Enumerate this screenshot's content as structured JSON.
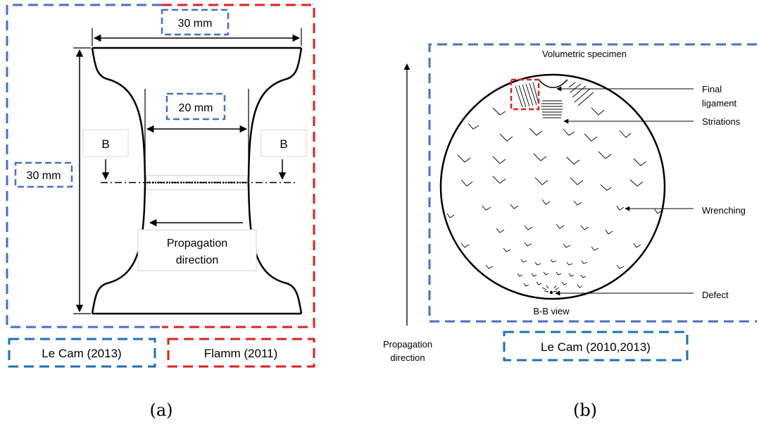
{
  "colors": {
    "blue": "#4472C4",
    "red": "#E02020",
    "dark_blue": "#1F6FB5",
    "black": "#000000"
  },
  "panel_a": {
    "caption": "(a)",
    "width_label": "30 mm",
    "height_label": "30 mm",
    "neck_label": "20 mm",
    "section_left": "B",
    "section_right": "B",
    "propagation_line1": "Propagation",
    "propagation_line2": "direction",
    "ref_blue": "Le Cam (2013)",
    "ref_red": "Flamm (2011)"
  },
  "panel_b": {
    "caption": "(b)",
    "title": "Volumetric specimen",
    "label_final_1": "Final",
    "label_final_2": "ligament",
    "label_striations": "Striations",
    "label_wrenching": "Wrenching",
    "label_defect": "Defect",
    "view_label": "B-B view",
    "propagation_line1": "Propagation",
    "propagation_line2": "direction",
    "ref": "Le Cam (2010,2013)"
  }
}
